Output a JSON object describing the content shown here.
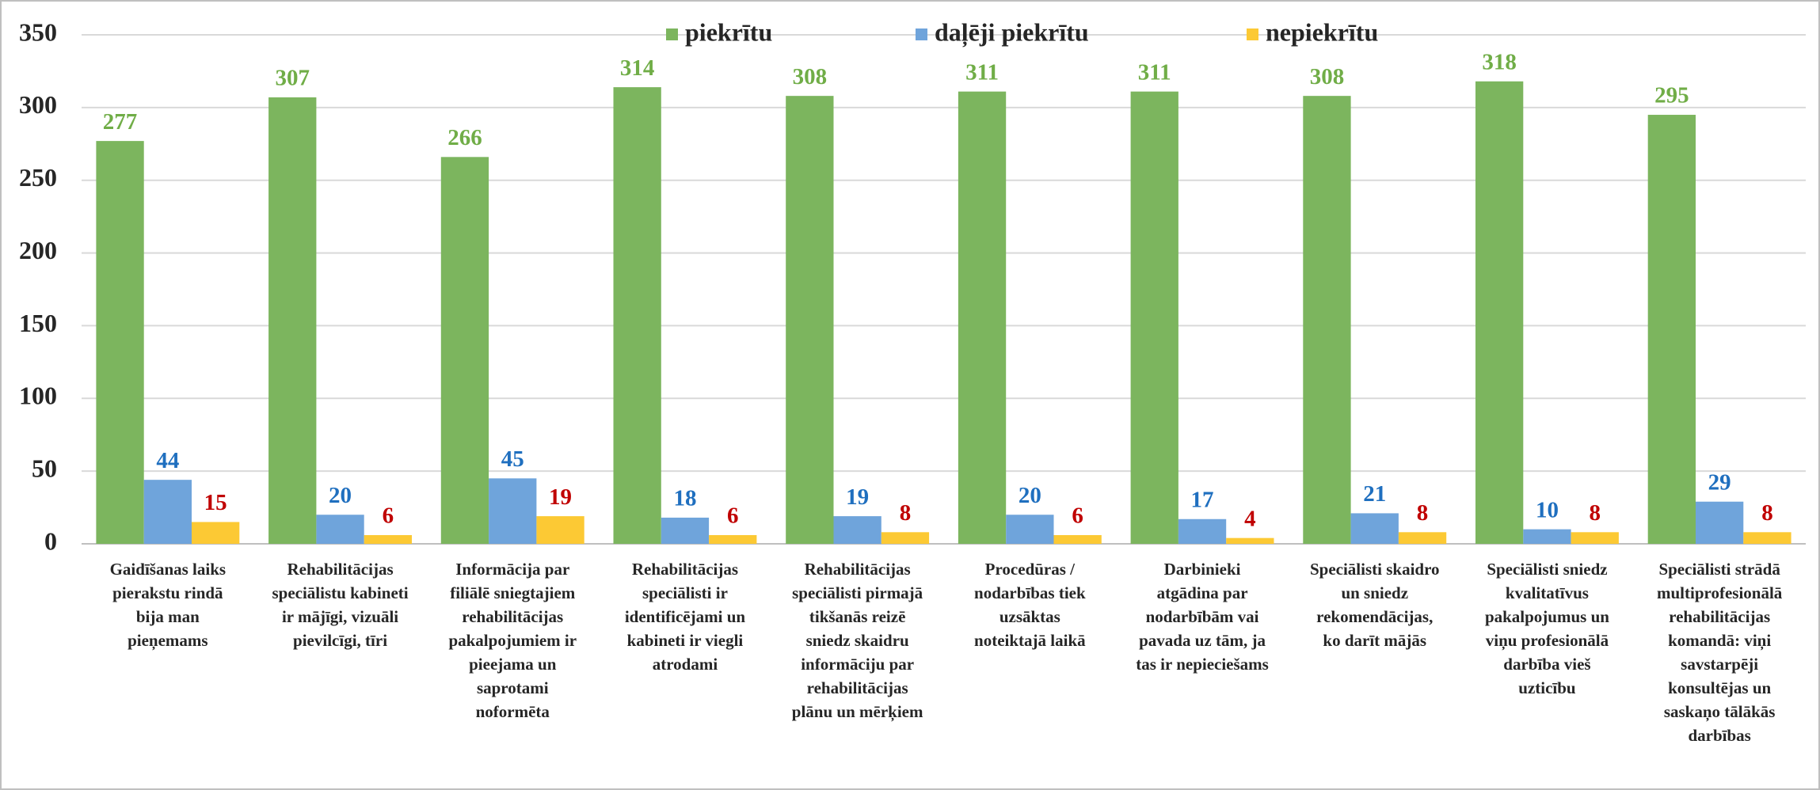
{
  "chart_data": {
    "type": "bar",
    "categories": [
      "Gaidīšanas laiks\npierakstu rindā\nbija man\npieņemams",
      "Rehabilitācijas\nspeciālistu kabineti\nir mājīgi, vizuāli\npievilcīgi, tīri",
      "Informācija par\nfiliālē sniegtajiem\nrehabilitācijas\npakalpojumiem ir\npieejama un\nsaprotami\nnoformēta",
      "Rehabilitācijas\nspeciālisti ir\nidentificējami un\nkabineti ir viegli\natrodami",
      "Rehabilitācijas\nspeciālisti  pirmajā\ntikšanās reizē\nsniedz skaidru\ninformāciju par\nrehabilitācijas\nplānu un mērķiem",
      "Procedūras /\nnodarbības tiek\nuzsāktas\nnoteiktajā laikā",
      "Darbinieki\natgādina par\nnodarbībām vai\npavada uz tām, ja\ntas ir nepieciešams",
      "Speciālisti skaidro\nun sniedz\nrekomendācijas,\nko darīt mājās",
      "Speciālisti sniedz\nkvalitatīvus\npakalpojumus un\nviņu profesionālā\ndarbība vieš\nuzticību",
      "Speciālisti strādā\nmultiprofesionālā\nrehabilitācijas\nkomandā: viņi\nsavstarpēji\nkonsultējas un\nsaskaņo tālākās\ndarbības"
    ],
    "series": [
      {
        "name": "piekrītu",
        "color": "#7cb55e",
        "label_color": "#70ad47",
        "values": [
          277,
          307,
          266,
          314,
          308,
          311,
          311,
          308,
          318,
          295
        ]
      },
      {
        "name": "daļēji piekrītu",
        "color": "#6fa4db",
        "label_color": "#1f6fbf",
        "values": [
          44,
          20,
          45,
          18,
          19,
          20,
          17,
          21,
          10,
          29
        ]
      },
      {
        "name": "nepiekrītu",
        "color": "#fcc934",
        "label_color": "#c00000",
        "values": [
          15,
          6,
          19,
          6,
          8,
          6,
          4,
          8,
          8,
          8
        ]
      }
    ],
    "ylim": [
      0,
      350
    ],
    "yticks": [
      0,
      50,
      100,
      150,
      200,
      250,
      300,
      350
    ],
    "grid": true,
    "legend": "top"
  }
}
